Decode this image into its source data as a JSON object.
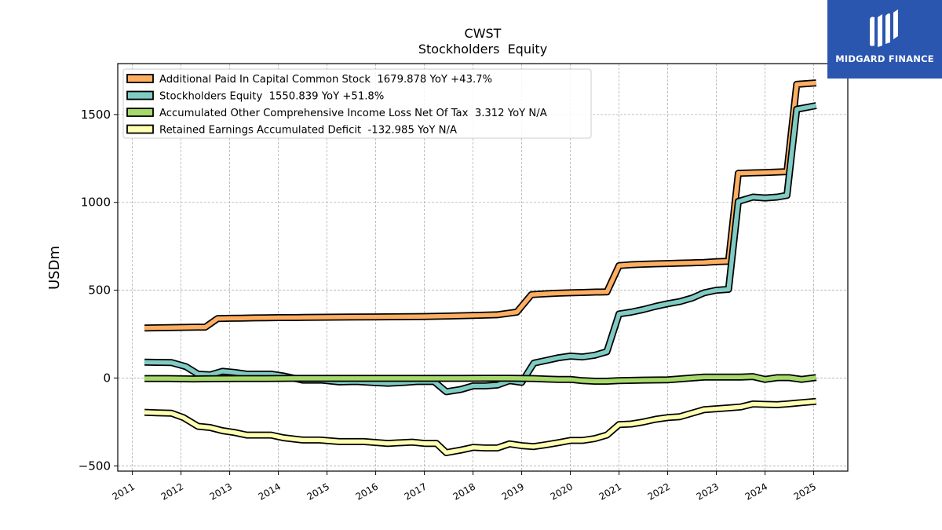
{
  "logo": {
    "text": "MIDGARD FINANCE",
    "icon": "midgard-mark-icon",
    "bg_color": "#2a56b0"
  },
  "chart_data": {
    "type": "line",
    "title": "CWST",
    "subtitle": "Stockholders  Equity",
    "ylabel": "USDm",
    "xlabel": "",
    "ylim": [
      -530,
      1790
    ],
    "xlim": [
      2010.7,
      2025.7
    ],
    "yticks": [
      -500,
      0,
      500,
      1000,
      1500
    ],
    "ytick_labels": [
      "−500",
      "0",
      "500",
      "1000",
      "1500"
    ],
    "xticks": [
      2011,
      2012,
      2013,
      2014,
      2015,
      2016,
      2017,
      2018,
      2019,
      2020,
      2021,
      2022,
      2023,
      2024,
      2025
    ],
    "xtick_labels": [
      "2011",
      "2012",
      "2013",
      "2014",
      "2015",
      "2016",
      "2017",
      "2018",
      "2019",
      "2020",
      "2021",
      "2022",
      "2023",
      "2024",
      "2025"
    ],
    "grid": true,
    "legend_position": "top-left",
    "series": [
      {
        "name": "Additional Paid In Capital Common Stock  1679.878 YoY +43.7%",
        "color": "#fdae61",
        "x": [
          2011.25,
          2011.5,
          2011.75,
          2012.0,
          2012.25,
          2012.5,
          2012.75,
          2013.0,
          2013.25,
          2013.5,
          2013.75,
          2014.0,
          2014.5,
          2015.0,
          2015.5,
          2016.0,
          2016.5,
          2017.0,
          2017.5,
          2018.0,
          2018.5,
          2018.9,
          2019.2,
          2019.5,
          2019.75,
          2020.0,
          2020.25,
          2020.5,
          2020.75,
          2021.0,
          2021.25,
          2021.5,
          2021.75,
          2022.0,
          2022.25,
          2022.5,
          2022.75,
          2023.0,
          2023.25,
          2023.45,
          2023.75,
          2024.0,
          2024.2,
          2024.45,
          2024.65,
          2025.05
        ],
        "values": [
          285,
          286,
          287,
          288,
          289,
          290,
          338,
          340,
          341,
          342,
          343,
          344,
          345,
          346,
          347,
          348,
          349,
          350,
          353,
          356,
          360,
          375,
          475,
          480,
          483,
          485,
          487,
          489,
          490,
          640,
          645,
          648,
          650,
          652,
          654,
          656,
          658,
          662,
          665,
          1165,
          1168,
          1170,
          1172,
          1175,
          1672,
          1680
        ]
      },
      {
        "name": "Stockholders Equity  1550.839 YoY +51.8%",
        "color": "#80cbc4",
        "x": [
          2011.25,
          2011.5,
          2011.8,
          2012.1,
          2012.35,
          2012.6,
          2012.85,
          2013.1,
          2013.35,
          2013.6,
          2013.85,
          2014.1,
          2014.5,
          2014.9,
          2015.25,
          2015.6,
          2015.9,
          2016.25,
          2016.6,
          2016.85,
          2017.2,
          2017.45,
          2017.75,
          2018.0,
          2018.25,
          2018.5,
          2018.75,
          2019.0,
          2019.25,
          2019.5,
          2019.75,
          2020.0,
          2020.25,
          2020.5,
          2020.75,
          2021.0,
          2021.25,
          2021.5,
          2021.75,
          2022.0,
          2022.25,
          2022.5,
          2022.75,
          2023.0,
          2023.25,
          2023.45,
          2023.75,
          2024.0,
          2024.25,
          2024.45,
          2024.65,
          2025.05
        ],
        "values": [
          90,
          89,
          88,
          65,
          22,
          18,
          38,
          32,
          22,
          22,
          22,
          12,
          -12,
          -12,
          -22,
          -20,
          -25,
          -30,
          -25,
          -20,
          -20,
          -78,
          -65,
          -45,
          -45,
          -40,
          -15,
          -25,
          85,
          100,
          115,
          125,
          120,
          130,
          150,
          365,
          375,
          390,
          408,
          423,
          435,
          455,
          485,
          500,
          505,
          1005,
          1030,
          1025,
          1030,
          1040,
          1530,
          1551
        ]
      },
      {
        "name": "Accumulated Other Comprehensive Income Loss Net Of Tax  3.312 YoY N/A",
        "color": "#a6d96a",
        "x": [
          2011.25,
          2011.75,
          2012.25,
          2012.75,
          2013.25,
          2013.75,
          2014.25,
          2014.75,
          2015.25,
          2015.75,
          2016.25,
          2016.75,
          2017.25,
          2017.75,
          2018.25,
          2018.75,
          2019.25,
          2019.5,
          2019.75,
          2020.0,
          2020.25,
          2020.5,
          2020.75,
          2021.0,
          2021.5,
          2022.0,
          2022.5,
          2022.75,
          2023.0,
          2023.5,
          2023.75,
          2024.0,
          2024.25,
          2024.5,
          2024.75,
          2025.05
        ],
        "values": [
          -3,
          -3,
          -5,
          -4,
          -3,
          -3,
          -2,
          -2,
          -2,
          -2,
          -2,
          -2,
          -2,
          -2,
          -1,
          -1,
          -3,
          -6,
          -8,
          -8,
          -15,
          -18,
          -18,
          -15,
          -12,
          -10,
          0,
          5,
          5,
          5,
          8,
          -8,
          2,
          2,
          -8,
          3
        ]
      },
      {
        "name": "Retained Earnings Accumulated Deficit  -132.985 YoY N/A",
        "color": "#ffffb2",
        "x": [
          2011.25,
          2011.5,
          2011.8,
          2012.05,
          2012.35,
          2012.6,
          2012.85,
          2013.1,
          2013.35,
          2013.6,
          2013.85,
          2014.1,
          2014.5,
          2014.85,
          2015.25,
          2015.75,
          2016.25,
          2016.75,
          2017.0,
          2017.25,
          2017.45,
          2017.75,
          2018.0,
          2018.25,
          2018.5,
          2018.75,
          2019.0,
          2019.25,
          2019.5,
          2019.75,
          2020.0,
          2020.25,
          2020.5,
          2020.75,
          2021.0,
          2021.25,
          2021.5,
          2021.75,
          2022.0,
          2022.25,
          2022.5,
          2022.75,
          2023.0,
          2023.25,
          2023.5,
          2023.75,
          2024.0,
          2024.25,
          2024.45,
          2024.75,
          2025.05
        ],
        "values": [
          -195,
          -198,
          -200,
          -225,
          -275,
          -282,
          -300,
          -310,
          -325,
          -325,
          -325,
          -340,
          -353,
          -353,
          -362,
          -362,
          -372,
          -365,
          -372,
          -372,
          -425,
          -410,
          -395,
          -398,
          -398,
          -375,
          -385,
          -390,
          -380,
          -368,
          -355,
          -355,
          -345,
          -325,
          -265,
          -262,
          -250,
          -235,
          -225,
          -220,
          -200,
          -180,
          -175,
          -170,
          -165,
          -148,
          -150,
          -152,
          -148,
          -140,
          -133
        ]
      }
    ]
  }
}
